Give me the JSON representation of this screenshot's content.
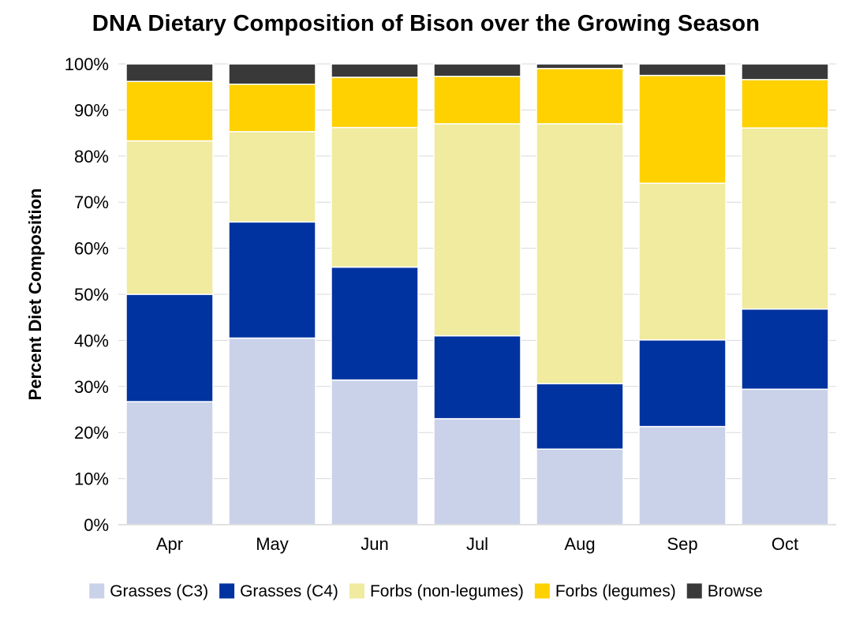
{
  "chart_data": {
    "type": "bar",
    "stacked": true,
    "title": "DNA Dietary Composition of Bison over the Growing Season",
    "xlabel": "",
    "ylabel": "Percent Diet Composition",
    "ylim": [
      0,
      100
    ],
    "yticks": [
      "0%",
      "10%",
      "20%",
      "30%",
      "40%",
      "50%",
      "60%",
      "70%",
      "80%",
      "90%",
      "100%"
    ],
    "grid": true,
    "legend_position": "bottom",
    "categories": [
      "Apr",
      "May",
      "Jun",
      "Jul",
      "Aug",
      "Sep",
      "Oct"
    ],
    "series": [
      {
        "name": "Grasses (C3)",
        "color": "#cad2ea",
        "values": [
          26.7,
          40.5,
          31.4,
          23.0,
          16.4,
          21.3,
          29.4
        ]
      },
      {
        "name": "Grasses (C4)",
        "color": "#0033a0",
        "values": [
          23.3,
          25.2,
          24.5,
          18.0,
          14.2,
          18.8,
          17.4
        ]
      },
      {
        "name": "Forbs (non-legumes)",
        "color": "#f0eb9e",
        "values": [
          33.3,
          19.6,
          30.3,
          46.0,
          56.4,
          34.0,
          39.3
        ]
      },
      {
        "name": "Forbs (legumes)",
        "color": "#ffd100",
        "values": [
          12.9,
          10.3,
          10.9,
          10.3,
          12.0,
          23.4,
          10.5
        ]
      },
      {
        "name": "Browse",
        "color": "#393939",
        "values": [
          3.8,
          4.4,
          2.9,
          2.7,
          1.0,
          2.5,
          3.4
        ]
      }
    ]
  }
}
